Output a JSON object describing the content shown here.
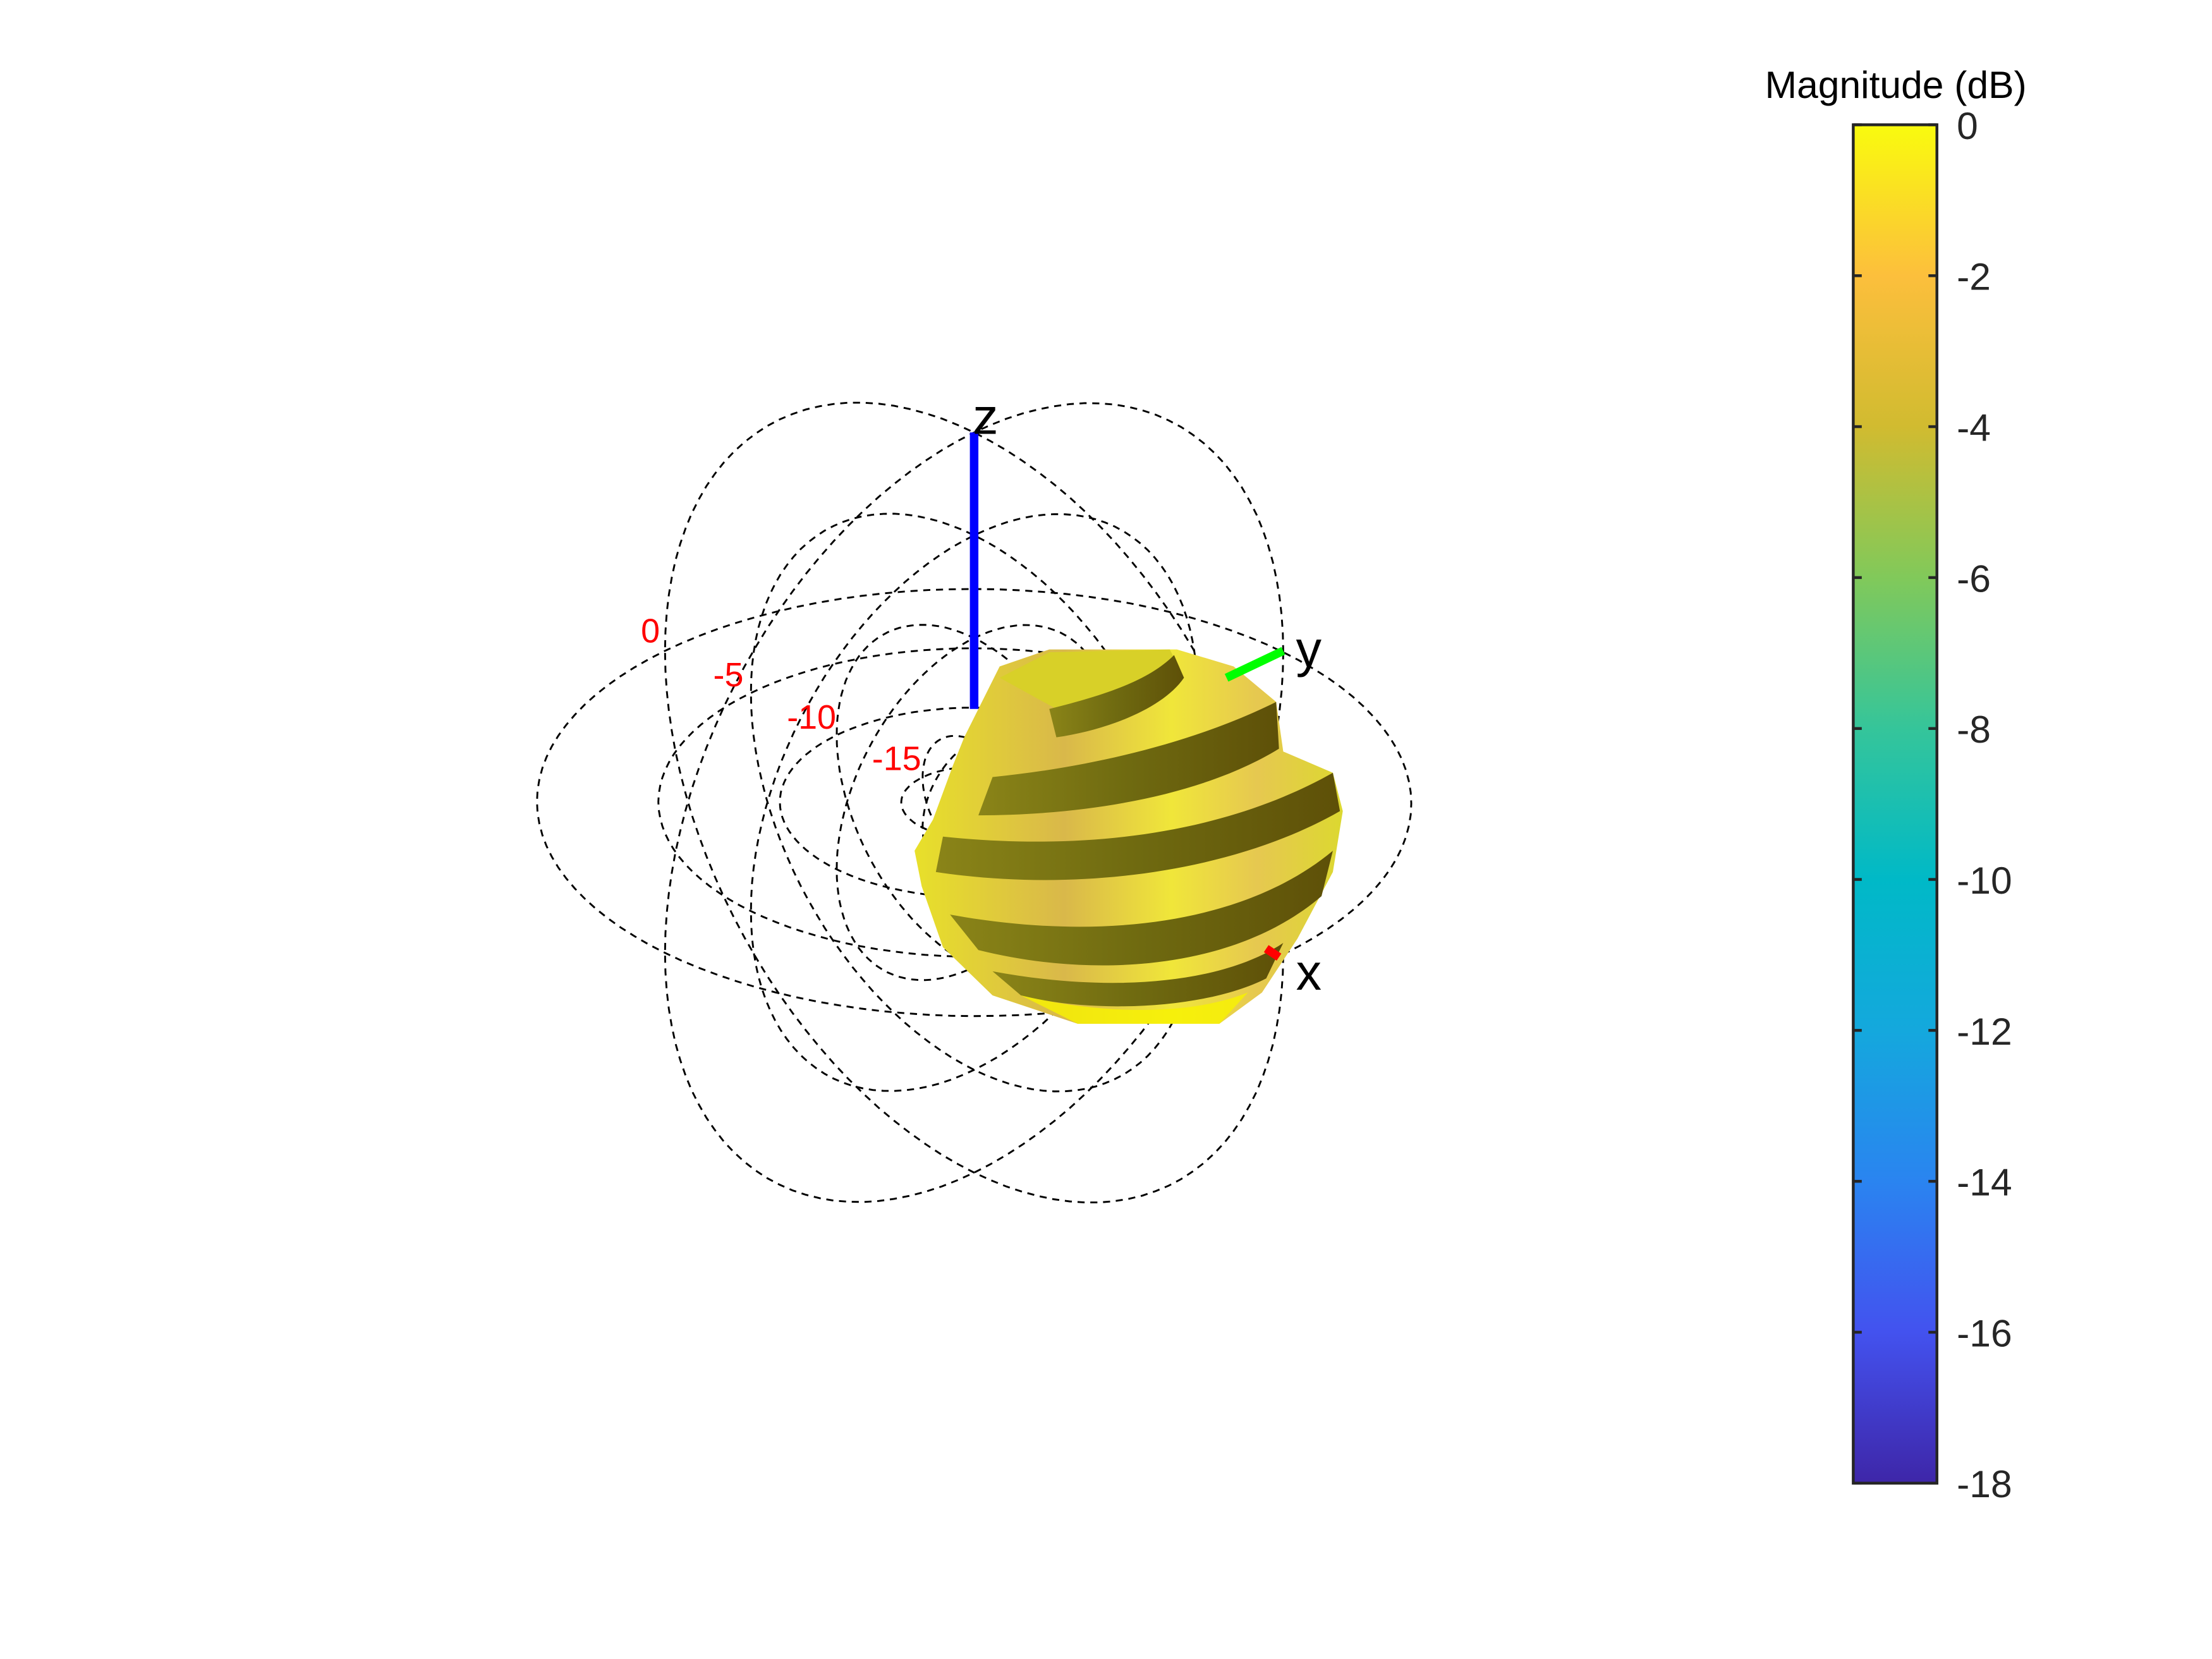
{
  "chart_data": {
    "type": "3d-radiation-pattern",
    "colormap": "parula",
    "colorbar": {
      "title": "Magnitude (dB)",
      "range": [
        -18,
        0
      ],
      "ticks": [
        0,
        -2,
        -4,
        -6,
        -8,
        -10,
        -12,
        -14,
        -16,
        -18
      ],
      "tick_labels": [
        "0",
        "-2",
        "-4",
        "-6",
        "-8",
        "-10",
        "-12",
        "-14",
        "-16",
        "-18"
      ],
      "gradient_stops": [
        "#3e26a8",
        "#4352ef",
        "#2a84f0",
        "#14a8dd",
        "#00b9c7",
        "#35c59a",
        "#81c95a",
        "#d1bb30",
        "#fcbf3c",
        "#f9fb0e"
      ]
    },
    "axes": {
      "x": {
        "label": "x",
        "color": "#ff0000"
      },
      "y": {
        "label": "y",
        "color": "#00ff00"
      },
      "z": {
        "label": "z",
        "color": "#0000ff"
      }
    },
    "rings": {
      "values_db": [
        0,
        -5,
        -10,
        -15
      ],
      "labels": [
        "0",
        "-5",
        "-10",
        "-15"
      ],
      "label_color": "#ff0000",
      "style": "dashed"
    },
    "pattern": {
      "dominant_range_db": [
        -4,
        0
      ],
      "colors": {
        "high": "#f2f01c",
        "mid": "#e0b04a",
        "shaded": "#7a7a10"
      }
    }
  }
}
